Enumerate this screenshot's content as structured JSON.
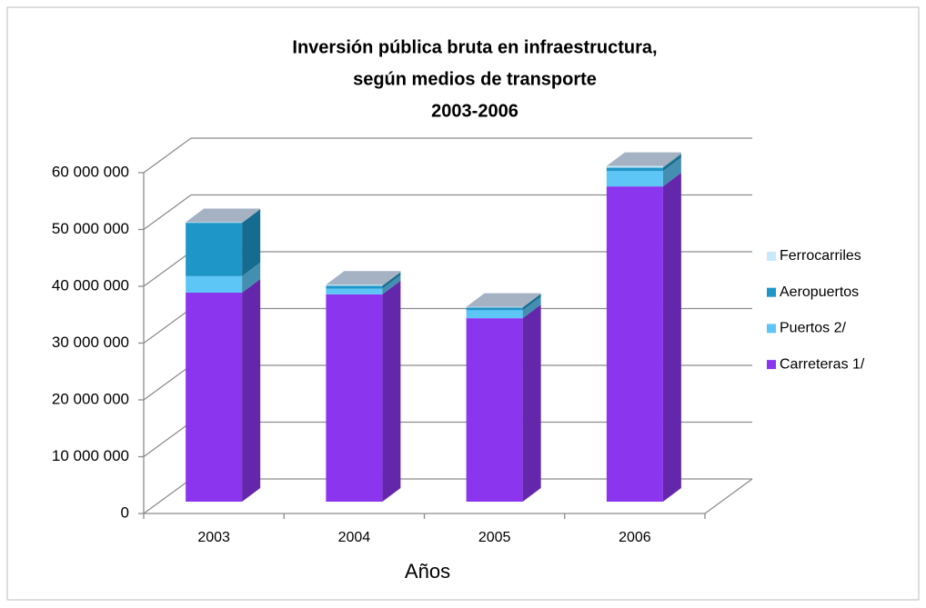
{
  "chart_data": {
    "type": "bar3d_stacked",
    "title": [
      "Inversión pública bruta en infraestructura,",
      "según medios de transporte",
      "2003-2006"
    ],
    "x_label": "Años",
    "categories": [
      "2003",
      "2004",
      "2005",
      "2006"
    ],
    "series": [
      {
        "name": "Carreteras 1/",
        "color": "#8b35ee",
        "values": [
          36800000,
          36500000,
          32300000,
          55500000
        ]
      },
      {
        "name": "Puertos 2/",
        "color": "#5ec6f6",
        "values": [
          2900000,
          1000000,
          1400000,
          2700000
        ]
      },
      {
        "name": "Aeropuertos",
        "color": "#1f96c8",
        "values": [
          9400000,
          500000,
          500000,
          600000
        ]
      },
      {
        "name": "Ferrocarriles",
        "color": "#c8e9fb",
        "values": [
          100000,
          200000,
          100000,
          300000
        ]
      }
    ],
    "ylim": [
      0,
      60000000
    ],
    "yticks": [
      0,
      {
        "value": 10000000,
        "label": "10 000 000"
      },
      {
        "value": 20000000,
        "label": "20 000 000"
      },
      {
        "value": 30000000,
        "label": "30 000 000"
      },
      {
        "value": 40000000,
        "label": "40 000 000"
      },
      {
        "value": 50000000,
        "label": "50 000 000"
      },
      {
        "value": 60000000,
        "label": "60 000 000"
      }
    ],
    "grid": true,
    "legend": "right"
  }
}
